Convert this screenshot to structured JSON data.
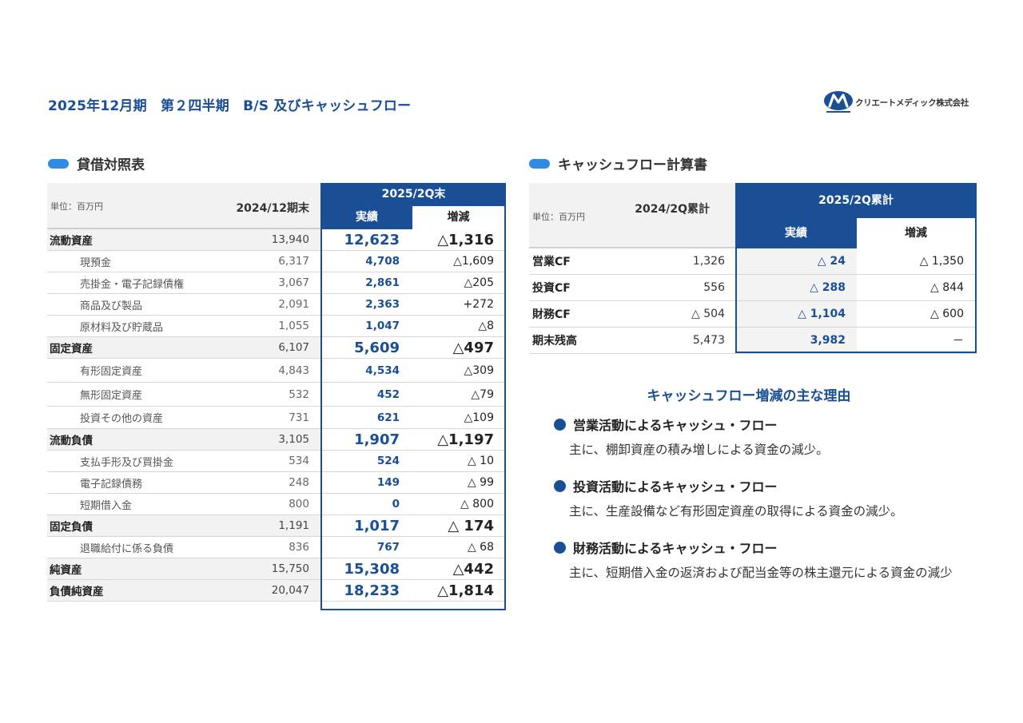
{
  "page": {
    "title": "2025年12月期　第２四半期　B/S 及びキャッシュフロー",
    "logo_text": "クリエートメディック株式会社"
  },
  "balance_sheet": {
    "heading": "貸借対照表",
    "unit": "単位：百万円",
    "col_prev": "2024/12期末",
    "col_period": "2025/2Q末",
    "col_actual": "実績",
    "col_change": "増減",
    "rows": [
      {
        "label": "流動資産",
        "prev": "13,940",
        "actual": "12,623",
        "change": "△1,316",
        "major": true
      },
      {
        "label": "現預金",
        "prev": "6,317",
        "actual": "4,708",
        "change": "△1,609",
        "major": false
      },
      {
        "label": "売掛金・電子記録債権",
        "prev": "3,067",
        "actual": "2,861",
        "change": "△205",
        "major": false
      },
      {
        "label": "商品及び製品",
        "prev": "2,091",
        "actual": "2,363",
        "change": "+272",
        "major": false
      },
      {
        "label": "原材料及び貯蔵品",
        "prev": "1,055",
        "actual": "1,047",
        "change": "△8",
        "major": false
      },
      {
        "label": "固定資産",
        "prev": "6,107",
        "actual": "5,609",
        "change": "△497",
        "major": true
      },
      {
        "label": "有形固定資産",
        "prev": "4,843",
        "actual": "4,534",
        "change": "△309",
        "major": false
      },
      {
        "label": "無形固定資産",
        "prev": "532",
        "actual": "452",
        "change": "△79",
        "major": false
      },
      {
        "label": "投資その他の資産",
        "prev": "731",
        "actual": "621",
        "change": "△109",
        "major": false
      },
      {
        "label": "流動負債",
        "prev": "3,105",
        "actual": "1,907",
        "change": "△1,197",
        "major": true
      },
      {
        "label": "支払手形及び買掛金",
        "prev": "534",
        "actual": "524",
        "change": "△ 10",
        "major": false
      },
      {
        "label": "電子記録債務",
        "prev": "248",
        "actual": "149",
        "change": "△ 99",
        "major": false
      },
      {
        "label": "短期借入金",
        "prev": "800",
        "actual": "0",
        "change": "△ 800",
        "major": false
      },
      {
        "label": "固定負債",
        "prev": "1,191",
        "actual": "1,017",
        "change": "△ 174",
        "major": true
      },
      {
        "label": "退職給付に係る負債",
        "prev": "836",
        "actual": "767",
        "change": "△ 68",
        "major": false
      },
      {
        "label": "純資産",
        "prev": "15,750",
        "actual": "15,308",
        "change": "△442",
        "major": true
      },
      {
        "label": "負債純資産",
        "prev": "20,047",
        "actual": "18,233",
        "change": "△1,814",
        "major": true
      }
    ]
  },
  "cash_flow": {
    "heading": "キャッシュフロー計算書",
    "unit": "単位：百万円",
    "col_prev": "2024/2Q累計",
    "col_period": "2025/2Q累計",
    "col_actual": "実績",
    "col_change": "増減",
    "rows": [
      {
        "label": "営業CF",
        "prev": "1,326",
        "actual": "△ 24",
        "change": "△ 1,350"
      },
      {
        "label": "投資CF",
        "prev": "556",
        "actual": "△ 288",
        "change": "△ 844"
      },
      {
        "label": "財務CF",
        "prev": "△ 504",
        "actual": "△ 1,104",
        "change": "△ 600"
      },
      {
        "label": "期末残高",
        "prev": "5,473",
        "actual": "3,982",
        "change": "－"
      }
    ]
  },
  "reasons": {
    "title": "キャッシュフロー増減の主な理由",
    "items": [
      {
        "heading": "営業活動によるキャッシュ・フロー",
        "body": "主に、棚卸資産の積み増しによる資金の減少。"
      },
      {
        "heading": "投資活動によるキャッシュ・フロー",
        "body": "主に、生産設備など有形固定資産の取得による資金の減少。"
      },
      {
        "heading": "財務活動によるキャッシュ・フロー",
        "body": "主に、短期借入金の返済および配当金等の株主還元による資金の減少"
      }
    ]
  },
  "colors": {
    "brand_blue": "#1a4f96",
    "accent_blue": "#2f8be6",
    "row_gray": "#f2f2f2"
  }
}
